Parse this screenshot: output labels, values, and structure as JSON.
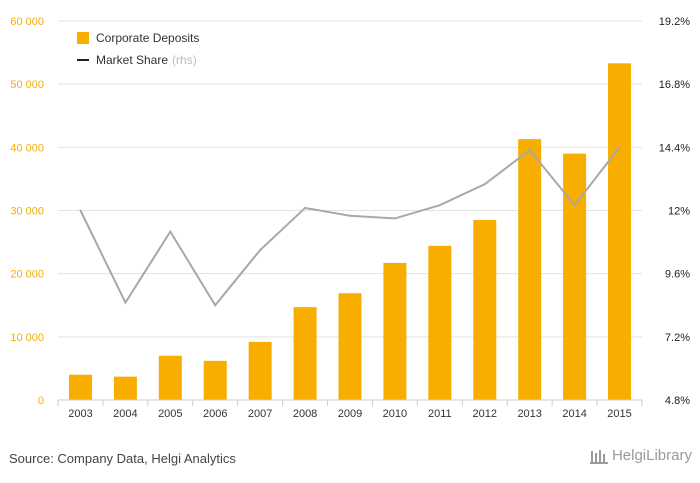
{
  "chart_data": {
    "type": "bar",
    "categories": [
      "2003",
      "2004",
      "2005",
      "2006",
      "2007",
      "2008",
      "2009",
      "2010",
      "2011",
      "2012",
      "2013",
      "2014",
      "2015"
    ],
    "series": [
      {
        "name": "Corporate Deposits",
        "type": "bar",
        "axis": "left",
        "values": [
          4000,
          3700,
          7000,
          6200,
          9200,
          14700,
          16900,
          21700,
          24400,
          28500,
          41300,
          39000,
          53300
        ]
      },
      {
        "name": "Market Share",
        "type": "line",
        "axis": "right",
        "values": [
          12.0,
          8.5,
          11.2,
          8.4,
          10.5,
          12.1,
          11.8,
          11.7,
          12.2,
          13.0,
          14.3,
          12.2,
          14.4
        ]
      }
    ],
    "y_left": {
      "min": 0,
      "max": 60000,
      "ticks": [
        "0",
        "10 000",
        "20 000",
        "30 000",
        "40 000",
        "50 000",
        "60 000"
      ]
    },
    "y_right": {
      "min": 4.8,
      "max": 19.2,
      "ticks": [
        "4.8%",
        "7.2%",
        "9.6%",
        "12%",
        "14.4%",
        "16.8%",
        "19.2%"
      ]
    },
    "legend": {
      "bar_label": "Corporate Deposits",
      "line_label": "Market Share",
      "line_suffix": "(rhs)",
      "position": "top-left"
    },
    "colors": {
      "bar": "#F7AE00",
      "line": "#a8a8a8",
      "left_tick": "#F7AE00",
      "right_tick": "#222222",
      "grid": "#e2e2e2"
    }
  },
  "footer": {
    "source": "Source: Company Data, Helgi Analytics",
    "logo_text": "HelgiLibrary"
  }
}
